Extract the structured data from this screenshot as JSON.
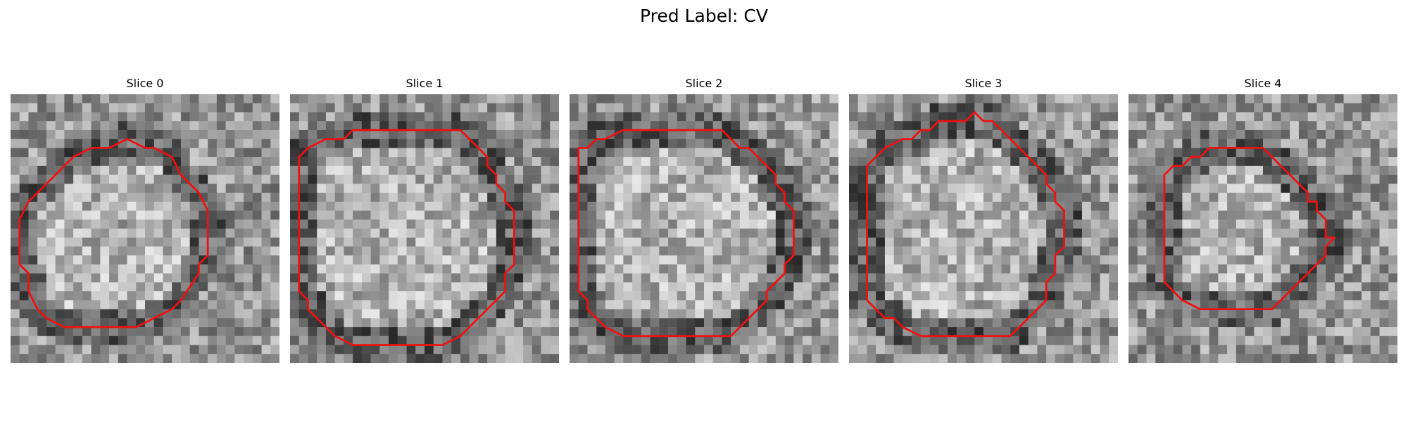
{
  "figure": {
    "title": "Pred Label: CV",
    "contour_color": "#ee1111"
  },
  "slices": [
    {
      "label": "Slice 0",
      "seed": 11,
      "contour": [
        [
          13,
          5
        ],
        [
          15,
          6
        ],
        [
          16,
          6
        ],
        [
          18,
          7
        ],
        [
          19,
          9
        ],
        [
          20,
          10
        ],
        [
          21,
          11
        ],
        [
          22,
          13
        ],
        [
          22,
          18
        ],
        [
          21,
          19
        ],
        [
          21,
          20
        ],
        [
          19,
          23
        ],
        [
          18,
          24
        ],
        [
          16,
          25
        ],
        [
          14,
          26
        ],
        [
          11,
          26
        ],
        [
          6,
          26
        ],
        [
          4,
          25
        ],
        [
          3,
          24
        ],
        [
          2,
          22
        ],
        [
          2,
          20
        ],
        [
          1,
          19
        ],
        [
          1,
          14
        ],
        [
          2,
          12
        ],
        [
          3,
          11
        ],
        [
          5,
          9
        ],
        [
          7,
          7
        ],
        [
          9,
          6
        ],
        [
          11,
          6
        ]
      ]
    },
    {
      "label": "Slice 1",
      "seed": 23,
      "contour": [
        [
          9,
          4
        ],
        [
          19,
          4
        ],
        [
          20,
          5
        ],
        [
          21,
          6
        ],
        [
          22,
          7
        ],
        [
          22,
          8
        ],
        [
          23,
          9
        ],
        [
          23,
          10
        ],
        [
          24,
          11
        ],
        [
          24,
          12
        ],
        [
          25,
          13
        ],
        [
          25,
          19
        ],
        [
          24,
          20
        ],
        [
          24,
          22
        ],
        [
          22,
          24
        ],
        [
          20,
          26
        ],
        [
          19,
          27
        ],
        [
          17,
          28
        ],
        [
          16,
          28
        ],
        [
          9,
          28
        ],
        [
          7,
          28
        ],
        [
          5,
          27
        ],
        [
          4,
          26
        ],
        [
          3,
          25
        ],
        [
          2,
          24
        ],
        [
          2,
          23
        ],
        [
          1,
          22
        ],
        [
          1,
          7
        ],
        [
          2,
          6
        ],
        [
          4,
          5
        ],
        [
          6,
          5
        ],
        [
          7,
          4
        ]
      ]
    },
    {
      "label": "Slice 2",
      "seed": 37,
      "contour": [
        [
          8,
          4
        ],
        [
          17,
          4
        ],
        [
          18,
          5
        ],
        [
          19,
          6
        ],
        [
          20,
          6
        ],
        [
          21,
          7
        ],
        [
          22,
          8
        ],
        [
          23,
          9
        ],
        [
          23,
          10
        ],
        [
          24,
          11
        ],
        [
          24,
          12
        ],
        [
          25,
          13
        ],
        [
          25,
          18
        ],
        [
          24,
          19
        ],
        [
          24,
          20
        ],
        [
          23,
          21
        ],
        [
          22,
          22
        ],
        [
          22,
          23
        ],
        [
          21,
          24
        ],
        [
          20,
          25
        ],
        [
          19,
          26
        ],
        [
          18,
          27
        ],
        [
          8,
          27
        ],
        [
          6,
          27
        ],
        [
          4,
          26
        ],
        [
          3,
          25
        ],
        [
          2,
          24
        ],
        [
          2,
          23
        ],
        [
          1,
          22
        ],
        [
          1,
          6
        ],
        [
          2,
          6
        ],
        [
          3,
          5
        ],
        [
          4,
          5
        ],
        [
          6,
          4
        ]
      ]
    },
    {
      "label": "Slice 3",
      "seed": 51,
      "contour": [
        [
          14,
          2
        ],
        [
          15,
          3
        ],
        [
          16,
          3
        ],
        [
          17,
          4
        ],
        [
          18,
          5
        ],
        [
          19,
          6
        ],
        [
          20,
          7
        ],
        [
          21,
          8
        ],
        [
          22,
          9
        ],
        [
          22,
          10
        ],
        [
          23,
          11
        ],
        [
          23,
          12
        ],
        [
          24,
          13
        ],
        [
          24,
          17
        ],
        [
          23,
          18
        ],
        [
          23,
          20
        ],
        [
          22,
          21
        ],
        [
          22,
          23
        ],
        [
          21,
          24
        ],
        [
          20,
          25
        ],
        [
          19,
          26
        ],
        [
          18,
          27
        ],
        [
          10,
          27
        ],
        [
          8,
          27
        ],
        [
          6,
          26
        ],
        [
          5,
          25
        ],
        [
          4,
          25
        ],
        [
          3,
          24
        ],
        [
          2,
          23
        ],
        [
          2,
          8
        ],
        [
          3,
          7
        ],
        [
          4,
          6
        ],
        [
          6,
          5
        ],
        [
          7,
          5
        ],
        [
          8,
          4
        ],
        [
          9,
          4
        ],
        [
          10,
          3
        ],
        [
          13,
          3
        ]
      ]
    },
    {
      "label": "Slice 4",
      "seed": 67,
      "contour": [
        [
          9,
          6
        ],
        [
          15,
          6
        ],
        [
          16,
          7
        ],
        [
          17,
          8
        ],
        [
          18,
          9
        ],
        [
          19,
          10
        ],
        [
          20,
          11
        ],
        [
          20,
          12
        ],
        [
          21,
          12
        ],
        [
          21,
          13
        ],
        [
          22,
          14
        ],
        [
          22,
          15
        ],
        [
          22,
          16
        ],
        [
          23,
          16
        ],
        [
          22,
          17
        ],
        [
          22,
          18
        ],
        [
          21,
          19
        ],
        [
          20,
          20
        ],
        [
          19,
          21
        ],
        [
          18,
          22
        ],
        [
          17,
          23
        ],
        [
          16,
          24
        ],
        [
          8,
          24
        ],
        [
          6,
          23
        ],
        [
          5,
          22
        ],
        [
          4,
          21
        ],
        [
          4,
          20
        ],
        [
          4,
          9
        ],
        [
          5,
          8
        ],
        [
          6,
          8
        ],
        [
          7,
          7
        ],
        [
          8,
          7
        ]
      ]
    }
  ]
}
